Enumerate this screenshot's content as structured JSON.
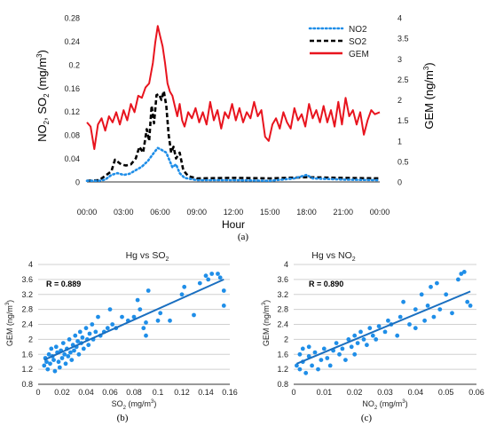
{
  "panel_labels": {
    "a": "(a)",
    "b": "(b)",
    "c": "(c)"
  },
  "chart_data": [
    {
      "id": "a",
      "type": "line",
      "xlabel": "Hour",
      "ylabel_left": "NO2, SO2 (mg/m3)",
      "ylabel_right": "GEM (ng/m3)",
      "x_ticks": [
        "00:00",
        "03:00",
        "06:00",
        "09:00",
        "12:00",
        "15:00",
        "18:00",
        "21:00",
        "00:00"
      ],
      "xlim_hours": [
        0,
        24
      ],
      "ylim_left": [
        0,
        0.28
      ],
      "y_ticks_left": [
        "0",
        "0.04",
        "0.08",
        "0.12",
        "0.16",
        "0.2",
        "0.24",
        "0.28"
      ],
      "ylim_right": [
        0,
        4
      ],
      "y_ticks_right": [
        "0",
        "0.5",
        "1",
        "1.5",
        "2",
        "2.5",
        "3",
        "3.5",
        "4"
      ],
      "legend_position": "top-right",
      "series": [
        {
          "name": "NO2",
          "axis": "left",
          "color": "#1f8ee8",
          "style": "dotted",
          "points": [
            [
              0,
              0.002
            ],
            [
              1,
              0.002
            ],
            [
              1.5,
              0.004
            ],
            [
              2,
              0.012
            ],
            [
              2.5,
              0.015
            ],
            [
              3,
              0.012
            ],
            [
              3.5,
              0.014
            ],
            [
              4,
              0.02
            ],
            [
              4.5,
              0.026
            ],
            [
              5,
              0.036
            ],
            [
              5.5,
              0.05
            ],
            [
              5.8,
              0.058
            ],
            [
              6,
              0.056
            ],
            [
              6.5,
              0.05
            ],
            [
              7,
              0.025
            ],
            [
              7.3,
              0.03
            ],
            [
              7.6,
              0.015
            ],
            [
              8,
              0.007
            ],
            [
              9,
              0.003
            ],
            [
              12,
              0.003
            ],
            [
              15,
              0.002
            ],
            [
              17,
              0.006
            ],
            [
              18,
              0.012
            ],
            [
              18.5,
              0.006
            ],
            [
              21,
              0.004
            ],
            [
              24,
              0.003
            ]
          ]
        },
        {
          "name": "SO2",
          "axis": "left",
          "color": "#000000",
          "style": "dashed",
          "points": [
            [
              0,
              0.002
            ],
            [
              1,
              0.003
            ],
            [
              2,
              0.018
            ],
            [
              2.3,
              0.038
            ],
            [
              2.8,
              0.03
            ],
            [
              3.2,
              0.028
            ],
            [
              3.6,
              0.03
            ],
            [
              4,
              0.04
            ],
            [
              4.3,
              0.06
            ],
            [
              4.6,
              0.05
            ],
            [
              4.9,
              0.09
            ],
            [
              5.1,
              0.07
            ],
            [
              5.3,
              0.13
            ],
            [
              5.5,
              0.1
            ],
            [
              5.7,
              0.148
            ],
            [
              5.9,
              0.15
            ],
            [
              6.1,
              0.14
            ],
            [
              6.3,
              0.155
            ],
            [
              6.5,
              0.13
            ],
            [
              6.7,
              0.08
            ],
            [
              6.9,
              0.05
            ],
            [
              7.1,
              0.06
            ],
            [
              7.3,
              0.04
            ],
            [
              7.6,
              0.05
            ],
            [
              7.9,
              0.02
            ],
            [
              8.3,
              0.01
            ],
            [
              9,
              0.006
            ],
            [
              12,
              0.007
            ],
            [
              15,
              0.006
            ],
            [
              18,
              0.008
            ],
            [
              21,
              0.007
            ],
            [
              24,
              0.006
            ]
          ]
        },
        {
          "name": "GEM",
          "axis": "right",
          "color": "#e8141e",
          "style": "solid",
          "points": [
            [
              0,
              1.45
            ],
            [
              0.3,
              1.35
            ],
            [
              0.6,
              0.8
            ],
            [
              0.9,
              1.4
            ],
            [
              1.2,
              1.55
            ],
            [
              1.5,
              1.25
            ],
            [
              1.8,
              1.6
            ],
            [
              2.1,
              1.45
            ],
            [
              2.4,
              1.7
            ],
            [
              2.7,
              1.4
            ],
            [
              3,
              1.75
            ],
            [
              3.3,
              1.5
            ],
            [
              3.6,
              1.9
            ],
            [
              3.9,
              1.7
            ],
            [
              4.2,
              2.1
            ],
            [
              4.5,
              2.05
            ],
            [
              4.8,
              2.3
            ],
            [
              5.1,
              2.4
            ],
            [
              5.4,
              2.9
            ],
            [
              5.6,
              3.4
            ],
            [
              5.8,
              3.8
            ],
            [
              6,
              3.55
            ],
            [
              6.2,
              3.3
            ],
            [
              6.4,
              2.9
            ],
            [
              6.6,
              2.4
            ],
            [
              6.8,
              2.2
            ],
            [
              7,
              2.1
            ],
            [
              7.2,
              1.85
            ],
            [
              7.4,
              1.6
            ],
            [
              7.6,
              1.9
            ],
            [
              7.8,
              1.5
            ],
            [
              8,
              1.35
            ],
            [
              8.3,
              1.7
            ],
            [
              8.6,
              1.55
            ],
            [
              8.9,
              1.8
            ],
            [
              9.2,
              1.45
            ],
            [
              9.5,
              1.7
            ],
            [
              9.8,
              1.4
            ],
            [
              10.1,
              1.95
            ],
            [
              10.4,
              1.5
            ],
            [
              10.7,
              1.75
            ],
            [
              11,
              1.3
            ],
            [
              11.3,
              1.7
            ],
            [
              11.6,
              1.55
            ],
            [
              11.9,
              1.9
            ],
            [
              12.2,
              1.5
            ],
            [
              12.5,
              1.8
            ],
            [
              12.8,
              1.45
            ],
            [
              13.1,
              1.7
            ],
            [
              13.4,
              1.55
            ],
            [
              13.7,
              1.95
            ],
            [
              14,
              1.6
            ],
            [
              14.3,
              1.75
            ],
            [
              14.6,
              1.1
            ],
            [
              14.9,
              1.0
            ],
            [
              15.2,
              1.4
            ],
            [
              15.5,
              1.55
            ],
            [
              15.8,
              1.3
            ],
            [
              16.1,
              1.7
            ],
            [
              16.4,
              1.45
            ],
            [
              16.7,
              1.3
            ],
            [
              17,
              1.8
            ],
            [
              17.3,
              1.5
            ],
            [
              17.6,
              1.65
            ],
            [
              17.9,
              1.35
            ],
            [
              18.2,
              1.9
            ],
            [
              18.5,
              1.55
            ],
            [
              18.8,
              1.75
            ],
            [
              19.1,
              1.45
            ],
            [
              19.4,
              1.85
            ],
            [
              19.7,
              1.45
            ],
            [
              20,
              1.75
            ],
            [
              20.3,
              1.35
            ],
            [
              20.6,
              1.95
            ],
            [
              20.9,
              1.4
            ],
            [
              21.2,
              2.05
            ],
            [
              21.5,
              1.6
            ],
            [
              21.8,
              1.75
            ],
            [
              22.1,
              1.4
            ],
            [
              22.4,
              1.7
            ],
            [
              22.7,
              1.15
            ],
            [
              23,
              1.5
            ],
            [
              23.3,
              1.75
            ],
            [
              23.6,
              1.65
            ],
            [
              24,
              1.7
            ]
          ]
        }
      ]
    },
    {
      "id": "b",
      "type": "scatter",
      "title": "Hg vs SO2",
      "xlabel": "SO2 (mg/m3)",
      "ylabel": "GEM (ng/m3)",
      "xlim": [
        0,
        0.16
      ],
      "ylim": [
        0.8,
        4
      ],
      "x_ticks": [
        "0",
        "0.02",
        "0.04",
        "0.06",
        "0.08",
        "0.1",
        "0.12",
        "0.14",
        "0.16"
      ],
      "y_ticks": [
        "0.8",
        "1.2",
        "1.6",
        "2",
        "2.4",
        "2.8",
        "3.2",
        "3.6",
        "4"
      ],
      "annotation": "R = 0.889",
      "point_color": "#1f8ee8",
      "trendline": {
        "x": [
          0.005,
          0.155
        ],
        "y": [
          1.45,
          3.6
        ]
      },
      "points": [
        [
          0.005,
          1.3
        ],
        [
          0.006,
          1.5
        ],
        [
          0.007,
          1.4
        ],
        [
          0.008,
          1.2
        ],
        [
          0.009,
          1.6
        ],
        [
          0.01,
          1.35
        ],
        [
          0.011,
          1.75
        ],
        [
          0.012,
          1.55
        ],
        [
          0.013,
          1.45
        ],
        [
          0.014,
          1.15
        ],
        [
          0.015,
          1.8
        ],
        [
          0.016,
          1.65
        ],
        [
          0.017,
          1.4
        ],
        [
          0.018,
          1.25
        ],
        [
          0.019,
          1.7
        ],
        [
          0.02,
          1.5
        ],
        [
          0.021,
          1.9
        ],
        [
          0.022,
          1.6
        ],
        [
          0.023,
          1.35
        ],
        [
          0.024,
          1.75
        ],
        [
          0.025,
          1.55
        ],
        [
          0.026,
          2.0
        ],
        [
          0.027,
          1.65
        ],
        [
          0.028,
          1.45
        ],
        [
          0.029,
          1.85
        ],
        [
          0.03,
          1.7
        ],
        [
          0.031,
          2.1
        ],
        [
          0.032,
          1.8
        ],
        [
          0.033,
          1.95
        ],
        [
          0.034,
          1.6
        ],
        [
          0.035,
          2.2
        ],
        [
          0.036,
          1.9
        ],
        [
          0.037,
          2.05
        ],
        [
          0.038,
          1.75
        ],
        [
          0.04,
          2.3
        ],
        [
          0.041,
          2.0
        ],
        [
          0.042,
          1.85
        ],
        [
          0.043,
          2.15
        ],
        [
          0.045,
          2.4
        ],
        [
          0.046,
          2.0
        ],
        [
          0.048,
          2.2
        ],
        [
          0.05,
          2.6
        ],
        [
          0.052,
          2.1
        ],
        [
          0.055,
          2.2
        ],
        [
          0.058,
          2.3
        ],
        [
          0.06,
          2.8
        ],
        [
          0.062,
          2.4
        ],
        [
          0.065,
          2.3
        ],
        [
          0.07,
          2.6
        ],
        [
          0.075,
          2.5
        ],
        [
          0.08,
          2.6
        ],
        [
          0.083,
          3.05
        ],
        [
          0.085,
          2.8
        ],
        [
          0.088,
          2.3
        ],
        [
          0.09,
          2.1
        ],
        [
          0.09,
          2.45
        ],
        [
          0.092,
          3.3
        ],
        [
          0.1,
          2.5
        ],
        [
          0.102,
          2.7
        ],
        [
          0.11,
          2.5
        ],
        [
          0.12,
          3.2
        ],
        [
          0.122,
          3.4
        ],
        [
          0.13,
          2.65
        ],
        [
          0.135,
          3.5
        ],
        [
          0.14,
          3.7
        ],
        [
          0.142,
          3.6
        ],
        [
          0.145,
          3.75
        ],
        [
          0.15,
          3.75
        ],
        [
          0.152,
          3.65
        ],
        [
          0.155,
          3.3
        ],
        [
          0.155,
          2.9
        ]
      ]
    },
    {
      "id": "c",
      "type": "scatter",
      "title": "Hg vs NO2",
      "xlabel": "NO2 (mg/m3)",
      "ylabel": "GEM (ng/m3)",
      "xlim": [
        0,
        0.06
      ],
      "ylim": [
        0.8,
        4
      ],
      "x_ticks": [
        "0",
        "0.01",
        "0.02",
        "0.03",
        "0.04",
        "0.05",
        "0.06"
      ],
      "y_ticks": [
        "0.8",
        "1.2",
        "1.6",
        "2",
        "2.4",
        "2.8",
        "3.2",
        "3.6",
        "4"
      ],
      "annotation": "R = 0.890",
      "point_color": "#1f8ee8",
      "trendline": {
        "x": [
          0.001,
          0.058
        ],
        "y": [
          1.35,
          3.28
        ]
      },
      "points": [
        [
          0.001,
          1.3
        ],
        [
          0.002,
          1.6
        ],
        [
          0.002,
          1.2
        ],
        [
          0.003,
          1.75
        ],
        [
          0.003,
          1.4
        ],
        [
          0.004,
          1.1
        ],
        [
          0.005,
          1.55
        ],
        [
          0.005,
          1.8
        ],
        [
          0.006,
          1.3
        ],
        [
          0.007,
          1.65
        ],
        [
          0.008,
          1.2
        ],
        [
          0.009,
          1.45
        ],
        [
          0.01,
          1.75
        ],
        [
          0.011,
          1.5
        ],
        [
          0.012,
          1.3
        ],
        [
          0.013,
          1.7
        ],
        [
          0.014,
          1.9
        ],
        [
          0.015,
          1.6
        ],
        [
          0.016,
          1.75
        ],
        [
          0.017,
          1.45
        ],
        [
          0.018,
          2.0
        ],
        [
          0.019,
          1.8
        ],
        [
          0.02,
          1.6
        ],
        [
          0.02,
          2.1
        ],
        [
          0.021,
          1.9
        ],
        [
          0.022,
          2.2
        ],
        [
          0.023,
          2.0
        ],
        [
          0.024,
          1.85
        ],
        [
          0.025,
          2.3
        ],
        [
          0.026,
          2.1
        ],
        [
          0.027,
          2.0
        ],
        [
          0.028,
          2.35
        ],
        [
          0.03,
          2.2
        ],
        [
          0.031,
          2.5
        ],
        [
          0.032,
          2.4
        ],
        [
          0.034,
          2.1
        ],
        [
          0.035,
          2.6
        ],
        [
          0.036,
          3.0
        ],
        [
          0.038,
          2.4
        ],
        [
          0.04,
          2.3
        ],
        [
          0.04,
          2.8
        ],
        [
          0.042,
          3.2
        ],
        [
          0.043,
          2.5
        ],
        [
          0.044,
          2.9
        ],
        [
          0.045,
          3.4
        ],
        [
          0.046,
          2.6
        ],
        [
          0.047,
          3.5
        ],
        [
          0.048,
          2.8
        ],
        [
          0.05,
          3.2
        ],
        [
          0.052,
          2.7
        ],
        [
          0.054,
          3.6
        ],
        [
          0.055,
          3.75
        ],
        [
          0.056,
          3.8
        ],
        [
          0.057,
          3.0
        ],
        [
          0.058,
          2.9
        ]
      ]
    }
  ]
}
